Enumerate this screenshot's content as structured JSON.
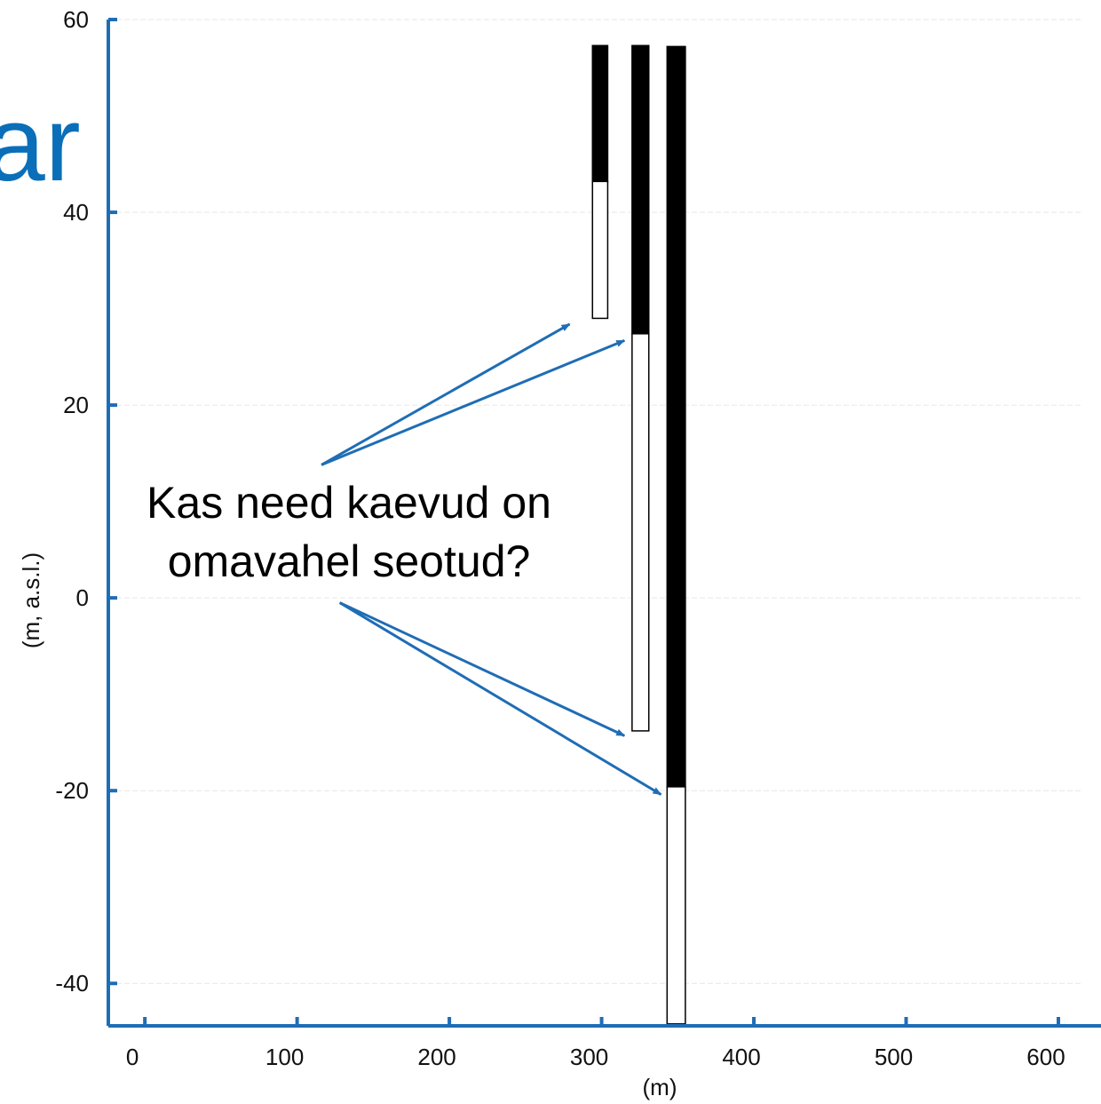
{
  "background_text": {
    "text": "ar",
    "color": "#0a6fb8"
  },
  "chart_data": {
    "type": "bar",
    "xlabel": "(m)",
    "ylabel": "(m, a.s.l.)",
    "xlim": [
      -24,
      628
    ],
    "ylim": [
      -44.4,
      60
    ],
    "x_ticks": [
      0,
      100,
      200,
      300,
      400,
      500,
      600
    ],
    "y_ticks": [
      60,
      40,
      20,
      0,
      -20,
      -40
    ],
    "grid": true,
    "axis_color": "#1f6db5",
    "wells": [
      {
        "x_left": 294,
        "x_right": 304,
        "segments": [
          {
            "kind": "casing",
            "top": 57.3,
            "bottom": 43.2,
            "color": "#000000"
          },
          {
            "kind": "screen",
            "top": 43.2,
            "bottom": 29.0,
            "color": "#ffffff"
          }
        ]
      },
      {
        "x_left": 320,
        "x_right": 331,
        "segments": [
          {
            "kind": "casing",
            "top": 57.3,
            "bottom": 27.4,
            "color": "#000000"
          },
          {
            "kind": "screen",
            "top": 27.4,
            "bottom": -13.8,
            "color": "#ffffff"
          }
        ]
      },
      {
        "x_left": 343,
        "x_right": 355,
        "segments": [
          {
            "kind": "casing",
            "top": 57.2,
            "bottom": -19.6,
            "color": "#000000"
          },
          {
            "kind": "screen",
            "top": -19.6,
            "bottom": -44.2,
            "color": "#ffffff"
          }
        ]
      }
    ],
    "annotation": {
      "lines": [
        "Kas need kaevud on",
        "omavahel seotud?"
      ],
      "color": "#1f6db5",
      "arrows": [
        {
          "from": [
            116,
            13.8
          ],
          "to": [
            279,
            28.4
          ]
        },
        {
          "from": [
            116,
            13.8
          ],
          "to": [
            315,
            26.7
          ]
        },
        {
          "from": [
            128,
            -0.5
          ],
          "to": [
            315,
            -14.3
          ]
        },
        {
          "from": [
            128,
            -0.5
          ],
          "to": [
            339,
            -20.4
          ]
        }
      ]
    }
  }
}
